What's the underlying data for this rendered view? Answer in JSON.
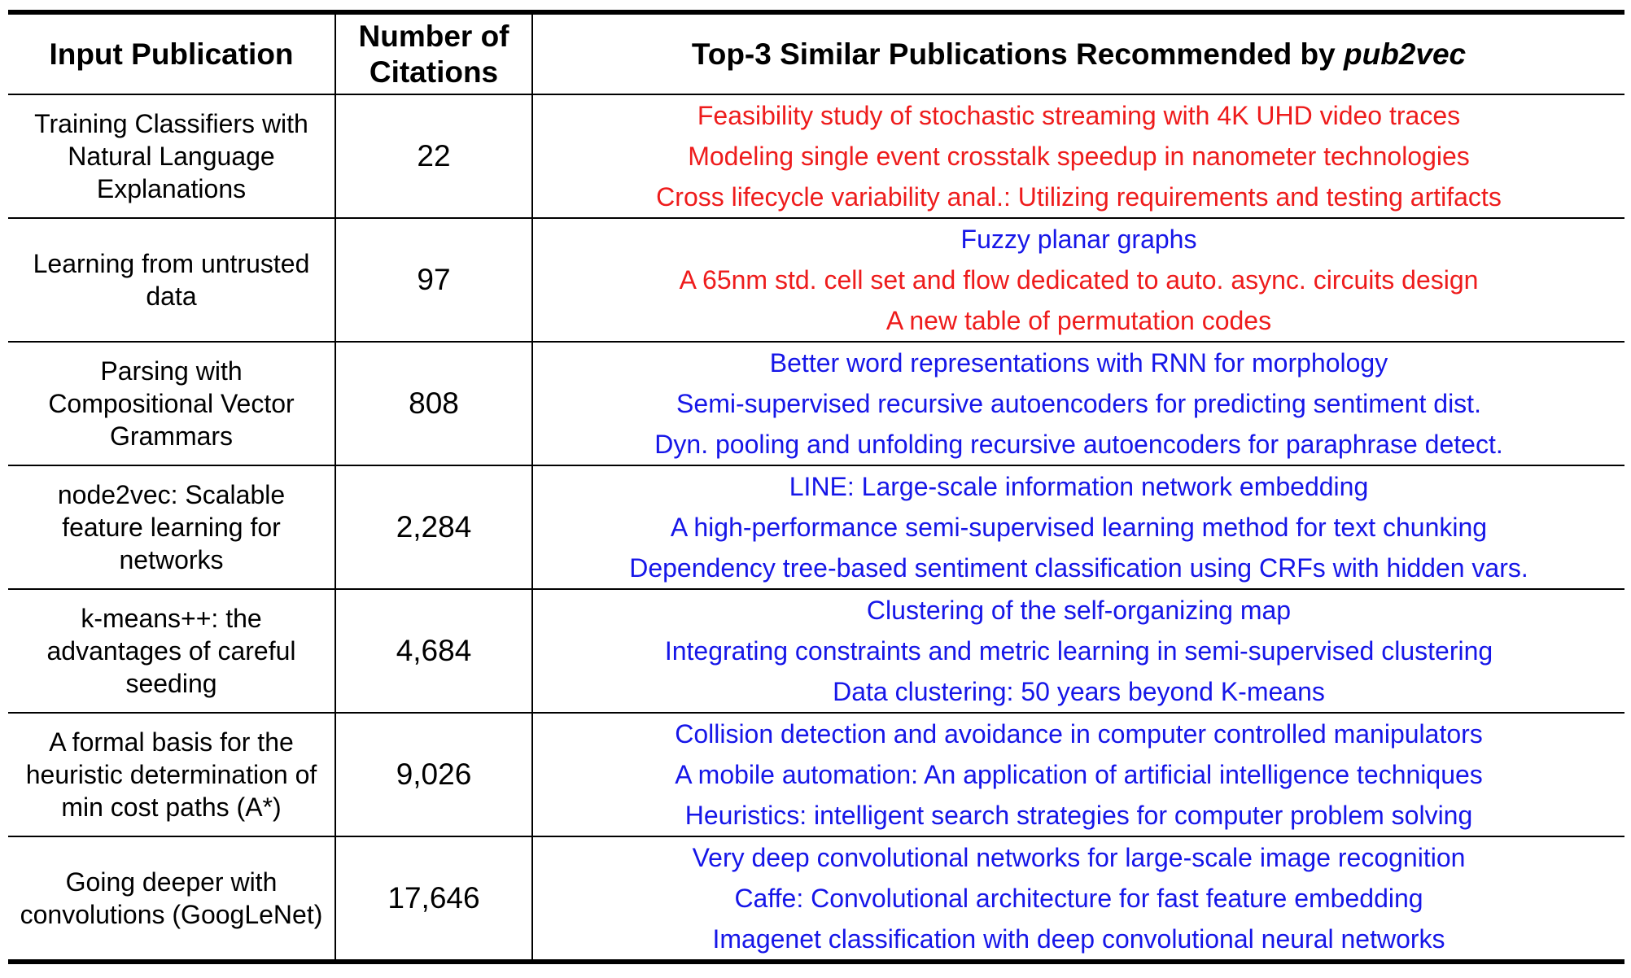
{
  "header": {
    "col_input": "Input Publication",
    "col_citations": "Number of Citations",
    "col_recs_prefix": "Top-3 Similar Publications Recommended by ",
    "col_recs_method": "pub2vec"
  },
  "colors": {
    "irrelevant": "#ee1c1c",
    "relevant": "#1616e8"
  },
  "rows": [
    {
      "publication": "Training Classifiers with Natural Language Explanations",
      "citations": "22",
      "recommendations": [
        {
          "title": "Feasibility study of stochastic streaming with 4K UHD video traces",
          "color": "red"
        },
        {
          "title": "Modeling single event crosstalk speedup in nanometer technologies",
          "color": "red"
        },
        {
          "title": "Cross lifecycle variability anal.: Utilizing requirements and testing artifacts",
          "color": "red"
        }
      ]
    },
    {
      "publication": "Learning from untrusted data",
      "citations": "97",
      "recommendations": [
        {
          "title": "Fuzzy planar graphs",
          "color": "blue"
        },
        {
          "title": "A 65nm std. cell set and flow dedicated to auto. async. circuits design",
          "color": "red"
        },
        {
          "title": "A new table of permutation codes",
          "color": "red"
        }
      ]
    },
    {
      "publication": "Parsing with Compositional Vector Grammars",
      "citations": "808",
      "recommendations": [
        {
          "title": "Better word representations with RNN for morphology",
          "color": "blue"
        },
        {
          "title": "Semi-supervised recursive autoencoders for predicting sentiment dist.",
          "color": "blue"
        },
        {
          "title": "Dyn. pooling and unfolding recursive autoencoders for paraphrase detect.",
          "color": "blue"
        }
      ]
    },
    {
      "publication": "node2vec: Scalable feature learning for networks",
      "citations": "2,284",
      "recommendations": [
        {
          "title": "LINE: Large-scale information network embedding",
          "color": "blue"
        },
        {
          "title": "A high-performance semi-supervised learning method for text chunking",
          "color": "blue"
        },
        {
          "title": "Dependency tree-based sentiment classification using CRFs with hidden vars.",
          "color": "blue"
        }
      ]
    },
    {
      "publication": "k-means++: the advantages of careful seeding",
      "citations": "4,684",
      "recommendations": [
        {
          "title": "Clustering of the self-organizing map",
          "color": "blue"
        },
        {
          "title": "Integrating constraints and metric learning in semi-supervised clustering",
          "color": "blue"
        },
        {
          "title": "Data clustering: 50 years beyond K-means",
          "color": "blue"
        }
      ]
    },
    {
      "publication": "A formal basis for the heuristic determination of min cost paths (A*)",
      "citations": "9,026",
      "recommendations": [
        {
          "title": "Collision detection and avoidance in computer controlled manipulators",
          "color": "blue"
        },
        {
          "title": "A mobile automation: An application of artificial intelligence techniques",
          "color": "blue"
        },
        {
          "title": "Heuristics: intelligent search strategies for computer problem solving",
          "color": "blue"
        }
      ]
    },
    {
      "publication": "Going deeper with convolutions (GoogLeNet)",
      "citations": "17,646",
      "recommendations": [
        {
          "title": "Very deep convolutional networks for large-scale image recognition",
          "color": "blue"
        },
        {
          "title": "Caffe: Convolutional architecture for fast feature embedding",
          "color": "blue"
        },
        {
          "title": "Imagenet classification with deep convolutional neural networks",
          "color": "blue"
        }
      ]
    }
  ]
}
